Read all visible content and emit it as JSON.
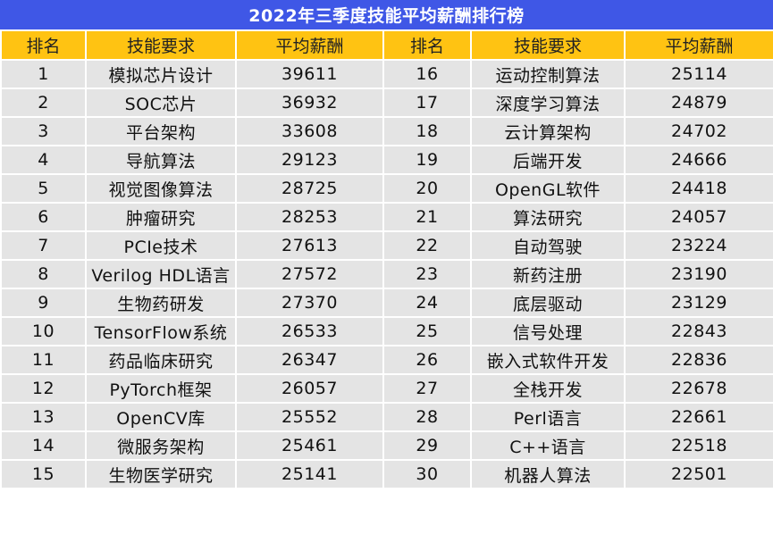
{
  "title": "2022年三季度技能平均薪酬排行榜",
  "headers": [
    "排名",
    "技能要求",
    "平均薪酬",
    "排名",
    "技能要求",
    "平均薪酬"
  ],
  "rows": [
    [
      "1",
      "模拟芯片设计",
      "39611",
      "16",
      "运动控制算法",
      "25114"
    ],
    [
      "2",
      "SOC芯片",
      "36932",
      "17",
      "深度学习算法",
      "24879"
    ],
    [
      "3",
      "平台架构",
      "33608",
      "18",
      "云计算架构",
      "24702"
    ],
    [
      "4",
      "导航算法",
      "29123",
      "19",
      "后端开发",
      "24666"
    ],
    [
      "5",
      "视觉图像算法",
      "28725",
      "20",
      "OpenGL软件",
      "24418"
    ],
    [
      "6",
      "肿瘤研究",
      "28253",
      "21",
      "算法研究",
      "24057"
    ],
    [
      "7",
      "PCIe技术",
      "27613",
      "22",
      "自动驾驶",
      "23224"
    ],
    [
      "8",
      "Verilog HDL语言",
      "27572",
      "23",
      "新药注册",
      "23190"
    ],
    [
      "9",
      "生物药研发",
      "27370",
      "24",
      "底层驱动",
      "23129"
    ],
    [
      "10",
      "TensorFlow系统",
      "26533",
      "25",
      "信号处理",
      "22843"
    ],
    [
      "11",
      "药品临床研究",
      "26347",
      "26",
      "嵌入式软件开发",
      "22836"
    ],
    [
      "12",
      "PyTorch框架",
      "26057",
      "27",
      "全栈开发",
      "22678"
    ],
    [
      "13",
      "OpenCV库",
      "25552",
      "28",
      "Perl语言",
      "22661"
    ],
    [
      "14",
      "微服务架构",
      "25461",
      "29",
      "C++语言",
      "22518"
    ],
    [
      "15",
      "生物医学研究",
      "25141",
      "30",
      "机器人算法",
      "22501"
    ]
  ],
  "colors": {
    "title_bg": "#3f57e6",
    "header_bg": "#ffc312",
    "row_bg": "#e4e4e4"
  }
}
